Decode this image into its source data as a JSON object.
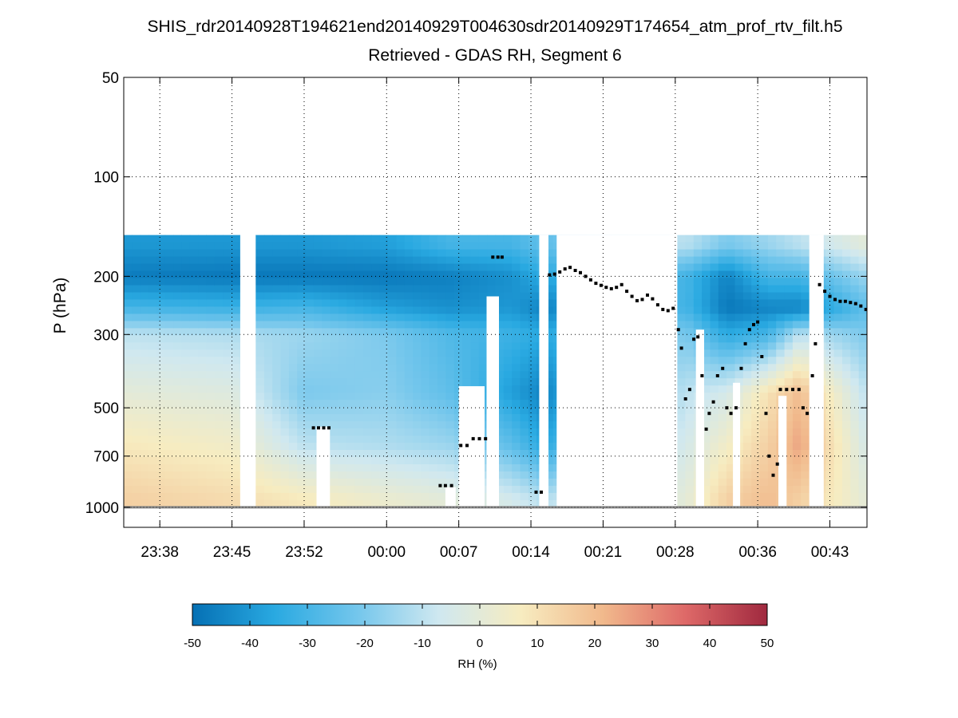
{
  "chart_data": {
    "type": "heatmap",
    "title": "SHIS_rdr20140928T194621end20140929T004630sdr20140929T174654_atm_prof_rtv_filt.h5",
    "subtitle": "Retrieved - GDAS RH, Segment 6",
    "ylabel": "P (hPa)",
    "y_scale": "log",
    "y_reversed": true,
    "ylim": [
      50,
      1150
    ],
    "y_ticks": [
      50,
      100,
      200,
      300,
      500,
      700,
      1000
    ],
    "x_units": "minutes relative to 00:00 UTC",
    "xlim": [
      -25.5,
      46.6
    ],
    "x_ticks": [
      {
        "value": -22,
        "label": "23:38"
      },
      {
        "value": -15,
        "label": "23:45"
      },
      {
        "value": -8,
        "label": "23:52"
      },
      {
        "value": 0,
        "label": "00:00"
      },
      {
        "value": 7,
        "label": "00:07"
      },
      {
        "value": 14,
        "label": "00:14"
      },
      {
        "value": 21,
        "label": "00:21"
      },
      {
        "value": 28,
        "label": "00:28"
      },
      {
        "value": 36,
        "label": "00:36"
      },
      {
        "value": 43,
        "label": "00:43"
      }
    ],
    "grid": true,
    "data_top_pressure": 150,
    "missing_bands": [
      {
        "x0": -14.2,
        "x1": -12.7
      },
      {
        "x0": -6.8,
        "x1": -5.5,
        "p_top": 570
      },
      {
        "x0": 5.7,
        "x1": 6.7,
        "p_top": 870
      },
      {
        "x0": 7.0,
        "x1": 9.5,
        "p_top": 430
      },
      {
        "x0": 9.7,
        "x1": 10.9,
        "p_top": 230
      },
      {
        "x0": 14.8,
        "x1": 15.7,
        "p_top": 150
      },
      {
        "x0": 16.5,
        "x1": 28.2,
        "p_top": 150
      },
      {
        "x0": 30.0,
        "x1": 30.8,
        "p_top": 290
      },
      {
        "x0": 33.6,
        "x1": 34.3,
        "p_top": 420
      },
      {
        "x0": 38.0,
        "x1": 38.8,
        "p_top": 460
      },
      {
        "x0": 41.0,
        "x1": 42.4,
        "p_top": 150
      }
    ],
    "rh_profile_nodes": [
      {
        "x": -25,
        "rh": [
          -40,
          -47,
          -30,
          -10,
          0,
          8,
          15
        ]
      },
      {
        "x": -15,
        "rh": [
          -40,
          -48,
          -32,
          -12,
          -2,
          5,
          12
        ]
      },
      {
        "x": -8,
        "rh": [
          -40,
          -48,
          -30,
          -15,
          -20,
          -10,
          8
        ]
      },
      {
        "x": 0,
        "rh": [
          -38,
          -48,
          -38,
          -20,
          -18,
          -12,
          3
        ]
      },
      {
        "x": 6,
        "rh": [
          -30,
          -46,
          -42,
          -28,
          -25,
          -15,
          0
        ]
      },
      {
        "x": 12,
        "rh": [
          -30,
          -42,
          -40,
          -32,
          -38,
          -25,
          -5
        ]
      },
      {
        "x": 15,
        "rh": [
          -25,
          -35,
          -45,
          -35,
          -45,
          -35,
          -10
        ]
      },
      {
        "x": 29,
        "rh": [
          -10,
          -30,
          -30,
          -20,
          -10,
          -5,
          0
        ]
      },
      {
        "x": 33,
        "rh": [
          -20,
          -45,
          -48,
          -35,
          -5,
          5,
          15
        ]
      },
      {
        "x": 37,
        "rh": [
          -15,
          -30,
          -45,
          -30,
          10,
          15,
          20
        ]
      },
      {
        "x": 40,
        "rh": [
          -10,
          -30,
          -45,
          -10,
          20,
          25,
          15
        ]
      },
      {
        "x": 46.6,
        "rh": [
          0,
          -15,
          -25,
          -20,
          -10,
          -5,
          0
        ]
      }
    ],
    "rh_profile_levels_hpa": [
      160,
      200,
      250,
      300,
      450,
      650,
      950
    ],
    "surface_pressure_hpa": 1000,
    "dots_series": [
      {
        "x": -7.1,
        "p": 575
      },
      {
        "x": -6.6,
        "p": 575
      },
      {
        "x": -6.1,
        "p": 575
      },
      {
        "x": -5.6,
        "p": 575
      },
      {
        "x": 5.2,
        "p": 860
      },
      {
        "x": 5.7,
        "p": 860
      },
      {
        "x": 6.3,
        "p": 860
      },
      {
        "x": 7.2,
        "p": 650
      },
      {
        "x": 7.8,
        "p": 650
      },
      {
        "x": 8.4,
        "p": 620
      },
      {
        "x": 9.0,
        "p": 620
      },
      {
        "x": 9.6,
        "p": 620
      },
      {
        "x": 10.3,
        "p": 175
      },
      {
        "x": 10.8,
        "p": 175
      },
      {
        "x": 11.2,
        "p": 175
      },
      {
        "x": 14.5,
        "p": 900
      },
      {
        "x": 15.0,
        "p": 900
      },
      {
        "x": 15.8,
        "p": 198
      },
      {
        "x": 16.3,
        "p": 197
      },
      {
        "x": 16.8,
        "p": 194
      },
      {
        "x": 17.3,
        "p": 190
      },
      {
        "x": 17.8,
        "p": 188
      },
      {
        "x": 18.3,
        "p": 192
      },
      {
        "x": 18.8,
        "p": 195
      },
      {
        "x": 19.3,
        "p": 200
      },
      {
        "x": 19.8,
        "p": 205
      },
      {
        "x": 20.3,
        "p": 210
      },
      {
        "x": 20.8,
        "p": 213
      },
      {
        "x": 21.3,
        "p": 216
      },
      {
        "x": 21.8,
        "p": 218
      },
      {
        "x": 22.3,
        "p": 216
      },
      {
        "x": 22.8,
        "p": 212
      },
      {
        "x": 23.3,
        "p": 222
      },
      {
        "x": 23.8,
        "p": 230
      },
      {
        "x": 24.3,
        "p": 237
      },
      {
        "x": 24.8,
        "p": 235
      },
      {
        "x": 25.3,
        "p": 228
      },
      {
        "x": 25.8,
        "p": 234
      },
      {
        "x": 26.3,
        "p": 244
      },
      {
        "x": 26.8,
        "p": 252
      },
      {
        "x": 27.3,
        "p": 254
      },
      {
        "x": 27.8,
        "p": 250
      },
      {
        "x": 28.3,
        "p": 290
      },
      {
        "x": 28.6,
        "p": 330
      },
      {
        "x": 29.0,
        "p": 470
      },
      {
        "x": 29.4,
        "p": 440
      },
      {
        "x": 29.8,
        "p": 310
      },
      {
        "x": 30.2,
        "p": 305
      },
      {
        "x": 30.6,
        "p": 400
      },
      {
        "x": 31.0,
        "p": 580
      },
      {
        "x": 31.3,
        "p": 520
      },
      {
        "x": 31.7,
        "p": 480
      },
      {
        "x": 32.1,
        "p": 400
      },
      {
        "x": 32.6,
        "p": 380
      },
      {
        "x": 33.0,
        "p": 500
      },
      {
        "x": 33.4,
        "p": 520
      },
      {
        "x": 33.9,
        "p": 500
      },
      {
        "x": 34.4,
        "p": 380
      },
      {
        "x": 34.8,
        "p": 320
      },
      {
        "x": 35.2,
        "p": 290
      },
      {
        "x": 35.6,
        "p": 280
      },
      {
        "x": 36.0,
        "p": 275
      },
      {
        "x": 36.4,
        "p": 350
      },
      {
        "x": 36.8,
        "p": 520
      },
      {
        "x": 37.1,
        "p": 700
      },
      {
        "x": 37.5,
        "p": 800
      },
      {
        "x": 37.9,
        "p": 740
      },
      {
        "x": 38.2,
        "p": 440
      },
      {
        "x": 38.8,
        "p": 440
      },
      {
        "x": 39.4,
        "p": 440
      },
      {
        "x": 40.0,
        "p": 440
      },
      {
        "x": 40.4,
        "p": 500
      },
      {
        "x": 40.8,
        "p": 520
      },
      {
        "x": 41.3,
        "p": 400
      },
      {
        "x": 41.6,
        "p": 320
      },
      {
        "x": 42.0,
        "p": 212
      },
      {
        "x": 42.5,
        "p": 222
      },
      {
        "x": 43.0,
        "p": 230
      },
      {
        "x": 43.5,
        "p": 235
      },
      {
        "x": 44.0,
        "p": 238
      },
      {
        "x": 44.5,
        "p": 238
      },
      {
        "x": 45.0,
        "p": 240
      },
      {
        "x": 45.5,
        "p": 242
      },
      {
        "x": 46.0,
        "p": 246
      },
      {
        "x": 46.5,
        "p": 252
      }
    ],
    "colorbar": {
      "label": "RH (%)",
      "min": -50,
      "max": 50,
      "ticks": [
        -50,
        -40,
        -30,
        -20,
        -10,
        0,
        10,
        20,
        30,
        40,
        50
      ],
      "tick_labels": [
        "-50",
        "-40",
        "-30",
        "-20",
        "-10",
        "0",
        "10",
        "20",
        "30",
        "40",
        "50"
      ],
      "colors": [
        "#0570b4",
        "#29a9e1",
        "#73c6ec",
        "#cfe8f0",
        "#f7ecc0",
        "#f1b98c",
        "#de6968",
        "#a0293f"
      ]
    }
  }
}
